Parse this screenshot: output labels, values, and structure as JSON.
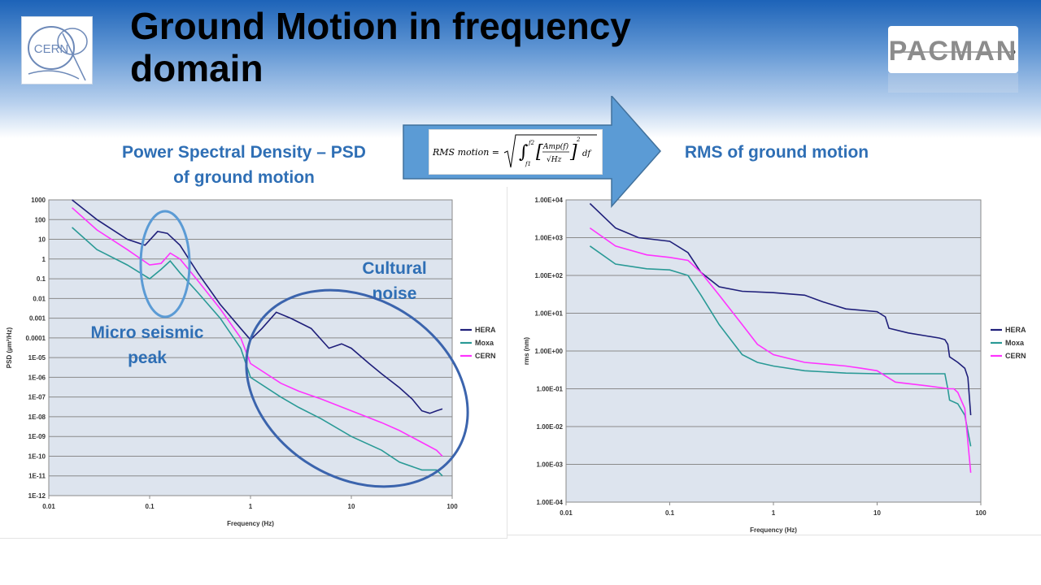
{
  "slide": {
    "title": "Ground Motion in frequency domain",
    "left_section_title_line1": "Power Spectral Density – PSD",
    "left_section_title_line2": "of ground motion",
    "right_section_title": "RMS of ground motion",
    "annotation_cultural_line1": "Cultural",
    "annotation_cultural_line2": "noise",
    "annotation_micro_line1": "Micro seismic",
    "annotation_micro_line2": "peak",
    "logo_left_text": "CERN",
    "logo_right_text": "PACMAN",
    "accent_color": "#2f6fb5",
    "annotation_ellipse_color": "#5b9bd5"
  },
  "formula": {
    "lhs": "RMS motion =",
    "lower_limit": "f1",
    "upper_limit": "f2",
    "numerator": "Amp(f)",
    "denominator": "√Hz",
    "exponent": "2",
    "differential": "df"
  },
  "chart_data": [
    {
      "type": "line",
      "xlabel": "Frequency (Hz)",
      "ylabel": "PSD (µm²/Hz)",
      "x_scale": "log",
      "y_scale": "log",
      "xlim": [
        0.01,
        100
      ],
      "ylim": [
        1e-12,
        1000
      ],
      "x_ticks": [
        0.01,
        0.1,
        1,
        10,
        100
      ],
      "x_tick_labels": [
        "0.01",
        "0.1",
        "1",
        "10",
        "100"
      ],
      "y_ticks": [
        1e-12,
        1e-11,
        1e-10,
        1e-09,
        1e-08,
        1e-07,
        1e-06,
        1e-05,
        0.0001,
        0.001,
        0.01,
        0.1,
        1,
        10,
        100,
        1000
      ],
      "y_tick_labels": [
        "1E-12",
        "1E-11",
        "1E-10",
        "1E-09",
        "1E-08",
        "1E-07",
        "1E-06",
        "1E-05",
        "0.0001",
        "0.001",
        "0.01",
        "0.1",
        "1",
        "10",
        "100",
        "1000"
      ],
      "grid": true,
      "legend_position": "right",
      "series": [
        {
          "name": "HERA",
          "color": "#1f1f7a",
          "x": [
            0.017,
            0.03,
            0.06,
            0.09,
            0.12,
            0.15,
            0.2,
            0.3,
            0.5,
            0.8,
            1.0,
            1.3,
            1.8,
            2.5,
            4,
            6,
            8,
            10,
            15,
            20,
            30,
            40,
            50,
            60,
            70,
            80
          ],
          "y": [
            1000,
            100,
            10,
            5,
            25,
            20,
            5,
            0.2,
            0.005,
            0.0003,
            8e-05,
            0.0003,
            0.002,
            0.001,
            0.0003,
            3e-05,
            5e-05,
            3e-05,
            5e-06,
            1.5e-06,
            3e-07,
            8e-08,
            2e-08,
            1.5e-08,
            2e-08,
            2.5e-08
          ]
        },
        {
          "name": "Moxa",
          "color": "#2a9a96",
          "x": [
            0.017,
            0.03,
            0.06,
            0.1,
            0.13,
            0.16,
            0.2,
            0.3,
            0.5,
            0.8,
            1.0,
            2,
            3,
            5,
            10,
            20,
            30,
            50,
            70,
            80
          ],
          "y": [
            40,
            3,
            0.5,
            0.1,
            0.3,
            0.8,
            0.2,
            0.02,
            0.001,
            3e-05,
            1e-06,
            1e-07,
            3e-08,
            8e-09,
            1e-09,
            2e-10,
            5e-11,
            2e-11,
            2e-11,
            1e-11
          ]
        },
        {
          "name": "CERN",
          "color": "#ff33ff",
          "x": [
            0.017,
            0.03,
            0.06,
            0.1,
            0.13,
            0.16,
            0.2,
            0.3,
            0.5,
            0.8,
            1.0,
            2,
            3,
            5,
            10,
            20,
            30,
            50,
            70,
            80
          ],
          "y": [
            400,
            30,
            3,
            0.5,
            0.6,
            2,
            1,
            0.08,
            0.003,
            0.0001,
            5e-06,
            5e-07,
            2e-07,
            8e-08,
            2e-08,
            5e-09,
            2e-09,
            5e-10,
            2e-10,
            1e-10
          ]
        }
      ]
    },
    {
      "type": "line",
      "xlabel": "Frequency (Hz)",
      "ylabel": "rms (nm)",
      "x_scale": "log",
      "y_scale": "log",
      "xlim": [
        0.01,
        100
      ],
      "ylim": [
        0.0001,
        10000
      ],
      "x_ticks": [
        0.01,
        0.1,
        1,
        10,
        100
      ],
      "x_tick_labels": [
        "0.01",
        "0.1",
        "1",
        "10",
        "100"
      ],
      "y_ticks": [
        0.0001,
        0.001,
        0.01,
        0.1,
        1,
        10,
        100,
        1000,
        10000
      ],
      "y_tick_labels": [
        "1.00E-04",
        "1.00E-03",
        "1.00E-02",
        "1.00E-01",
        "1.00E+00",
        "1.00E+01",
        "1.00E+02",
        "1.00E+03",
        "1.00E+04"
      ],
      "grid": true,
      "legend_position": "right",
      "series": [
        {
          "name": "HERA",
          "color": "#1f1f7a",
          "x": [
            0.017,
            0.03,
            0.05,
            0.1,
            0.15,
            0.2,
            0.3,
            0.5,
            1,
            2,
            3,
            5,
            10,
            12,
            13,
            20,
            30,
            40,
            45,
            48,
            50,
            60,
            70,
            75,
            80
          ],
          "y": [
            8000,
            1800,
            1000,
            800,
            400,
            120,
            50,
            38,
            35,
            30,
            20,
            13,
            11,
            8,
            4,
            3,
            2.5,
            2.2,
            2,
            1.5,
            0.7,
            0.5,
            0.35,
            0.2,
            0.02
          ]
        },
        {
          "name": "Moxa",
          "color": "#2a9a96",
          "x": [
            0.017,
            0.03,
            0.06,
            0.1,
            0.15,
            0.2,
            0.3,
            0.5,
            0.7,
            1,
            2,
            5,
            10,
            20,
            45,
            48,
            50,
            60,
            70,
            80
          ],
          "y": [
            600,
            200,
            150,
            140,
            100,
            30,
            5,
            0.8,
            0.5,
            0.4,
            0.3,
            0.26,
            0.25,
            0.25,
            0.25,
            0.1,
            0.05,
            0.04,
            0.02,
            0.003
          ]
        },
        {
          "name": "CERN",
          "color": "#ff33ff",
          "x": [
            0.017,
            0.03,
            0.06,
            0.1,
            0.15,
            0.2,
            0.3,
            0.5,
            0.7,
            1,
            2,
            5,
            7,
            10,
            15,
            30,
            50,
            55,
            60,
            70,
            80
          ],
          "y": [
            1800,
            600,
            350,
            300,
            250,
            120,
            30,
            5,
            1.5,
            0.8,
            0.5,
            0.4,
            0.35,
            0.3,
            0.15,
            0.12,
            0.1,
            0.1,
            0.08,
            0.03,
            0.0006
          ]
        }
      ]
    }
  ]
}
